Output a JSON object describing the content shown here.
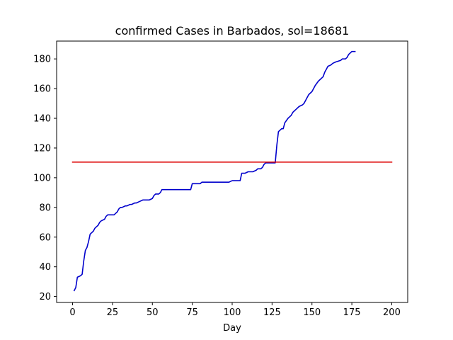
{
  "chart_data": {
    "type": "line",
    "title": "confirmed Cases in Barbados, sol=18681",
    "xlabel": "Day",
    "ylabel": "",
    "xlim": [
      -10,
      210
    ],
    "ylim": [
      16,
      192
    ],
    "xticks": [
      0,
      25,
      50,
      75,
      100,
      125,
      150,
      175,
      200
    ],
    "yticks": [
      20,
      40,
      60,
      80,
      100,
      120,
      140,
      160,
      180
    ],
    "grid": false,
    "series": [
      {
        "color": "#0000cc",
        "x": [
          1,
          2,
          3,
          5,
          6,
          7,
          8,
          9,
          10,
          11,
          12,
          13,
          14,
          15,
          16,
          17,
          18,
          20,
          21,
          22,
          23,
          26,
          27,
          28,
          29,
          30,
          31,
          33,
          34,
          36,
          37,
          39,
          40,
          42,
          44,
          45,
          48,
          50,
          51,
          52,
          54,
          55,
          56,
          58,
          60,
          62,
          74,
          75,
          76,
          79,
          80,
          81,
          83,
          98,
          100,
          101,
          103,
          105,
          106,
          107,
          108,
          110,
          111,
          113,
          115,
          116,
          118,
          119,
          120,
          121,
          122,
          123,
          127,
          128,
          129,
          130,
          131,
          132,
          133,
          135,
          136,
          137,
          138,
          140,
          142,
          144,
          145,
          146,
          147,
          148,
          149,
          150,
          151,
          152,
          154,
          155,
          157,
          158,
          159,
          160,
          162,
          163,
          165,
          168,
          169,
          170,
          171,
          172,
          173,
          175,
          177
        ],
        "y": [
          24,
          26,
          33,
          34,
          35,
          44,
          51,
          53,
          57,
          62,
          63,
          64,
          66,
          67,
          68,
          70,
          71,
          72,
          74,
          75,
          75,
          75,
          76,
          77,
          79,
          80,
          80,
          81,
          81,
          82,
          82,
          83,
          83,
          84,
          85,
          85,
          85,
          86,
          88,
          89,
          89,
          90,
          92,
          92,
          92,
          92,
          92,
          96,
          96,
          96,
          96,
          97,
          97,
          97,
          98,
          98,
          98,
          98,
          103,
          103,
          103,
          104,
          104,
          104,
          105,
          106,
          106,
          107,
          109,
          110,
          110,
          110,
          110,
          122,
          131,
          132,
          133,
          133,
          137,
          140,
          141,
          142,
          144,
          146,
          148,
          149,
          150,
          152,
          154,
          156,
          157,
          158,
          160,
          162,
          165,
          166,
          168,
          171,
          173,
          175,
          176,
          177,
          178,
          179,
          180,
          180,
          180,
          181,
          183,
          185,
          185
        ]
      },
      {
        "color": "#dd0000",
        "x": [
          0,
          200
        ],
        "y": [
          110.5,
          110.5
        ]
      }
    ]
  }
}
